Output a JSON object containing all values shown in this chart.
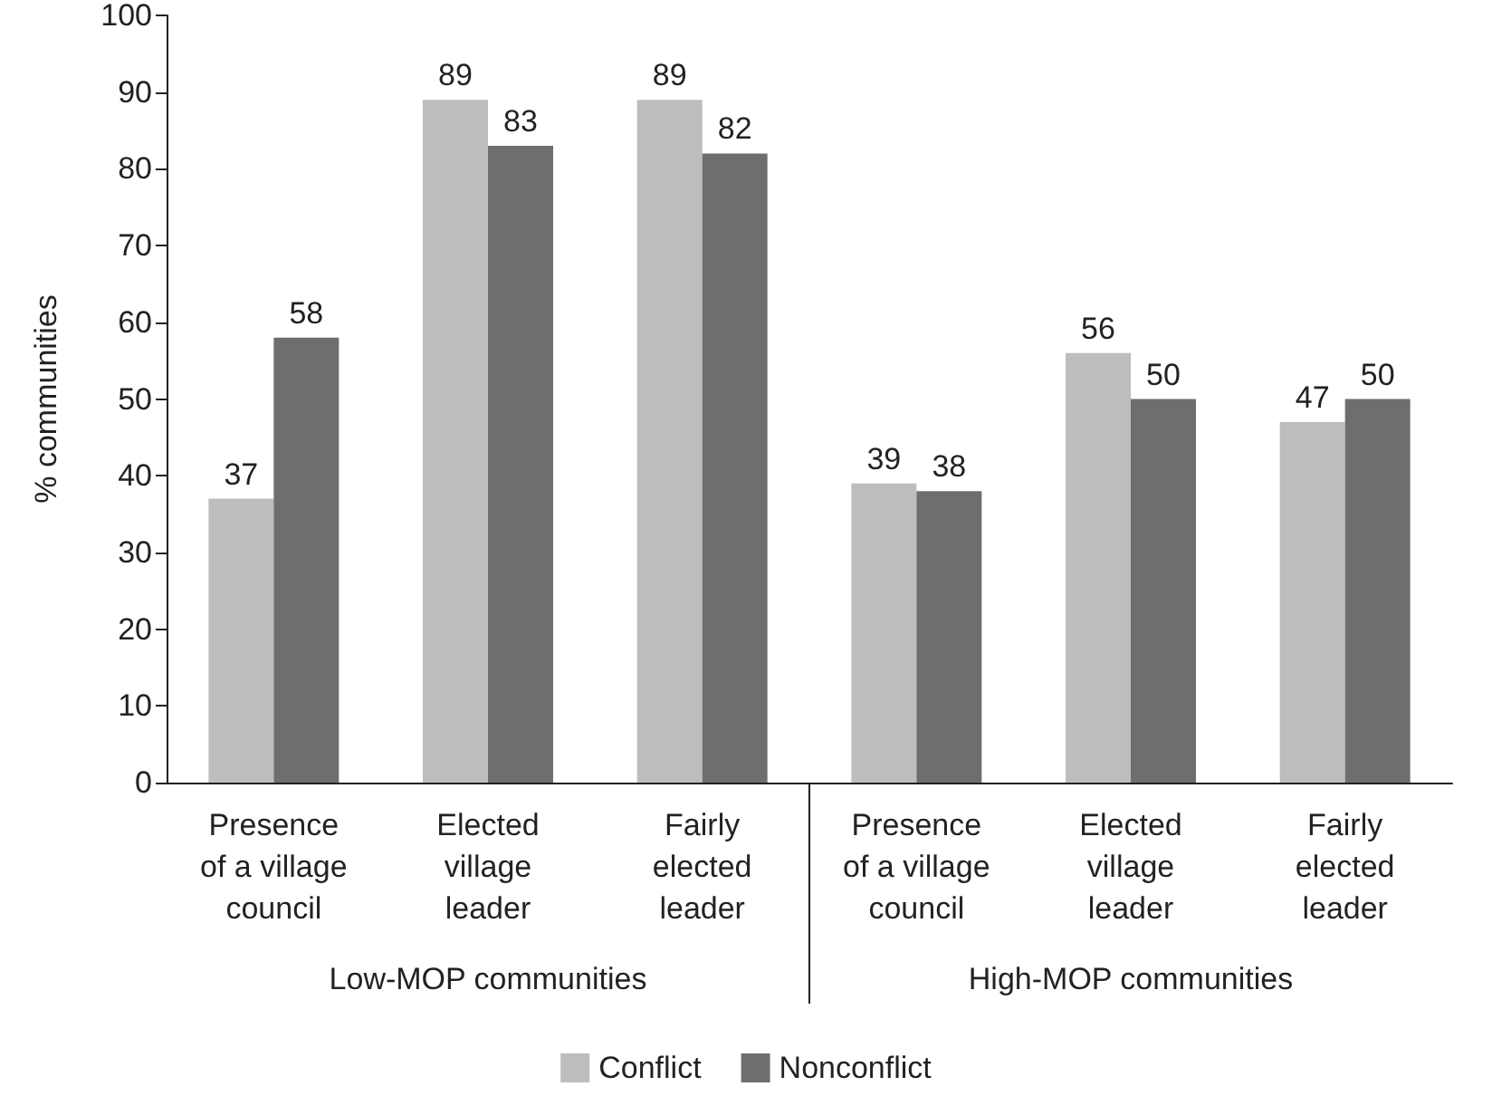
{
  "chart_data": {
    "type": "bar",
    "ylabel": "% communities",
    "categories": [
      "Presence\nof a village\ncouncil",
      "Elected\nvillage\nleader",
      "Fairly\nelected\nleader",
      "Presence\nof a village\ncouncil",
      "Elected\nvillage\nleader",
      "Fairly\nelected\nleader"
    ],
    "series": [
      {
        "name": "Conflict",
        "color": "#bdbdbd",
        "values": [
          37,
          89,
          89,
          39,
          56,
          47
        ]
      },
      {
        "name": "Nonconflict",
        "color": "#6d6e70",
        "values": [
          58,
          83,
          82,
          38,
          50,
          50
        ]
      }
    ],
    "ylim": [
      0,
      100
    ],
    "yticks": [
      0,
      10,
      20,
      30,
      40,
      50,
      60,
      70,
      80,
      90,
      100
    ],
    "annotations": [
      "Low-MOP communities",
      "High-MOP communities"
    ],
    "data_labels": true,
    "grid": false,
    "legend": "bottom"
  }
}
